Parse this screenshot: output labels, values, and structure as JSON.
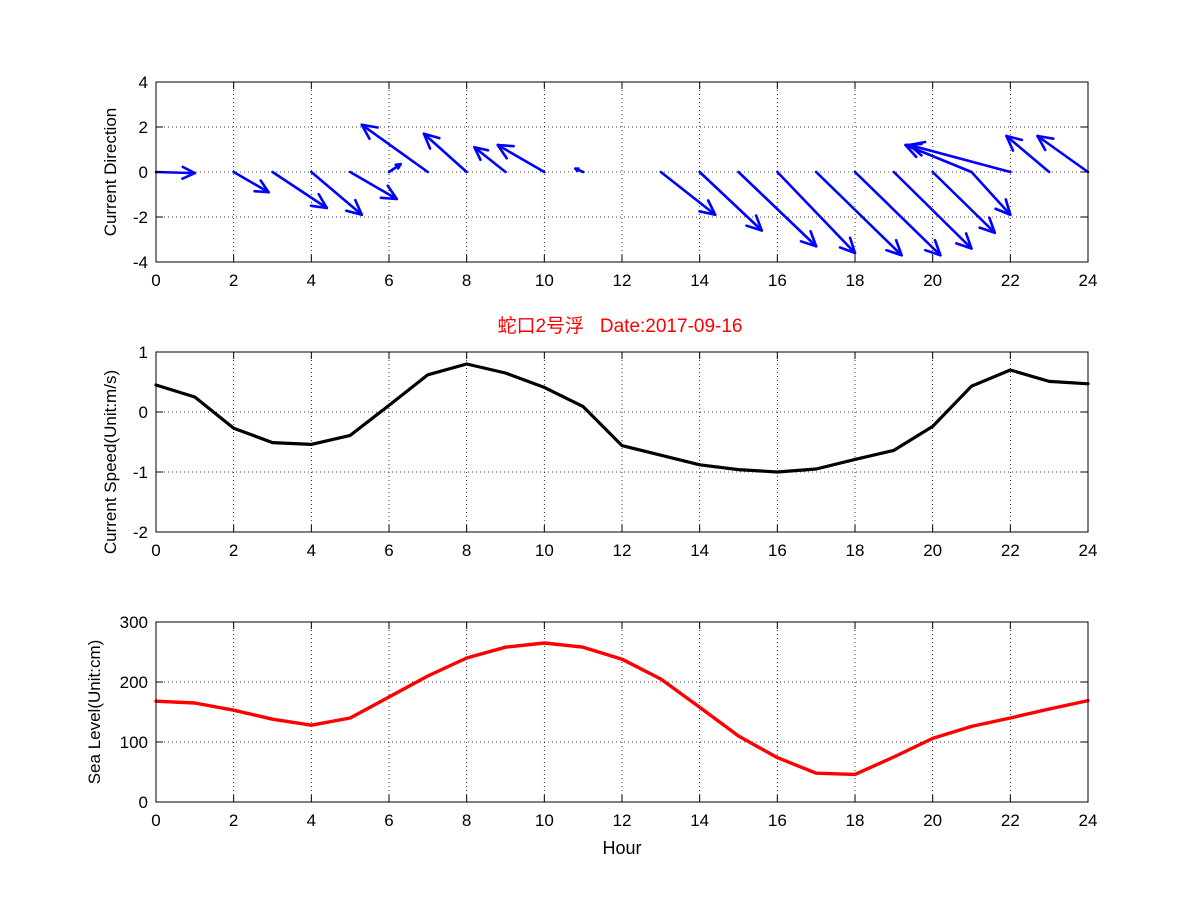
{
  "figure_title": "蛇口2号浮   Date:2017-09-16",
  "colors": {
    "arrows": "#0000ff",
    "speed": "#000000",
    "level": "#ff0000",
    "title": "#ff0000"
  },
  "chart_data": [
    {
      "type": "quiver",
      "title": "",
      "xlabel": "",
      "ylabel": "Current Direction",
      "xlim": [
        0,
        24
      ],
      "ylim": [
        -4,
        4
      ],
      "xticks": [
        "0",
        "2",
        "4",
        "6",
        "8",
        "10",
        "12",
        "14",
        "16",
        "18",
        "20",
        "22",
        "24"
      ],
      "yticks": [
        "4",
        "2",
        "0",
        "-2",
        "-4"
      ],
      "grid": true,
      "vectors": [
        {
          "x": 0,
          "u": 1.0,
          "v": -0.05
        },
        {
          "x": 2,
          "u": 0.9,
          "v": -0.9
        },
        {
          "x": 3,
          "u": 1.4,
          "v": -1.6
        },
        {
          "x": 4,
          "u": 1.3,
          "v": -1.9
        },
        {
          "x": 5,
          "u": 1.2,
          "v": -1.2
        },
        {
          "x": 6,
          "u": 0.3,
          "v": 0.35
        },
        {
          "x": 7,
          "u": -1.7,
          "v": 2.1
        },
        {
          "x": 8,
          "u": -1.1,
          "v": 1.7
        },
        {
          "x": 9,
          "u": -0.8,
          "v": 1.1
        },
        {
          "x": 10,
          "u": -1.2,
          "v": 1.2
        },
        {
          "x": 11,
          "u": -0.2,
          "v": 0.15
        },
        {
          "x": 13,
          "u": 1.4,
          "v": -1.9
        },
        {
          "x": 14,
          "u": 1.6,
          "v": -2.6
        },
        {
          "x": 15,
          "u": 2.0,
          "v": -3.3
        },
        {
          "x": 16,
          "u": 2.0,
          "v": -3.6
        },
        {
          "x": 17,
          "u": 2.2,
          "v": -3.7
        },
        {
          "x": 18,
          "u": 2.2,
          "v": -3.7
        },
        {
          "x": 19,
          "u": 2.0,
          "v": -3.4
        },
        {
          "x": 20,
          "u": 1.6,
          "v": -2.7
        },
        {
          "x": 21,
          "u": 1.0,
          "v": -1.9
        },
        {
          "x": 21,
          "u": -1.7,
          "v": 1.2
        },
        {
          "x": 22,
          "u": -2.6,
          "v": 1.2
        },
        {
          "x": 23,
          "u": -1.1,
          "v": 1.6
        },
        {
          "x": 24,
          "u": -1.3,
          "v": 1.6
        }
      ]
    },
    {
      "type": "line",
      "title": "",
      "xlabel": "",
      "ylabel": "Current Speed(Unit:m/s)",
      "xlim": [
        0,
        24
      ],
      "ylim": [
        -2,
        1
      ],
      "xticks": [
        "0",
        "2",
        "4",
        "6",
        "8",
        "10",
        "12",
        "14",
        "16",
        "18",
        "20",
        "22",
        "24"
      ],
      "yticks": [
        "1",
        "0",
        "-1",
        "-2"
      ],
      "grid": true,
      "series": [
        {
          "x": [
            0,
            1,
            2,
            3,
            4,
            5,
            6,
            7,
            8,
            9,
            10,
            11,
            12,
            13,
            14,
            15,
            16,
            17,
            18,
            19,
            20,
            21,
            22,
            23,
            24
          ],
          "values": [
            0.45,
            0.25,
            -0.27,
            -0.51,
            -0.54,
            -0.39,
            0.11,
            0.62,
            0.8,
            0.65,
            0.41,
            0.09,
            -0.56,
            -0.72,
            -0.88,
            -0.96,
            -1.0,
            -0.95,
            -0.79,
            -0.64,
            -0.24,
            0.43,
            0.7,
            0.51,
            0.47
          ]
        }
      ]
    },
    {
      "type": "line",
      "title": "",
      "xlabel": "Hour",
      "ylabel": "Sea Level(Unit:cm)",
      "xlim": [
        0,
        24
      ],
      "ylim": [
        0,
        300
      ],
      "xticks": [
        "0",
        "2",
        "4",
        "6",
        "8",
        "10",
        "12",
        "14",
        "16",
        "18",
        "20",
        "22",
        "24"
      ],
      "yticks": [
        "300",
        "200",
        "100",
        "0"
      ],
      "grid": true,
      "series": [
        {
          "x": [
            0,
            1,
            2,
            3,
            4,
            5,
            6,
            7,
            8,
            9,
            10,
            11,
            12,
            13,
            14,
            15,
            16,
            17,
            18,
            19,
            20,
            21,
            22,
            23,
            24
          ],
          "values": [
            168,
            165,
            153,
            138,
            128,
            140,
            175,
            210,
            240,
            258,
            265,
            258,
            238,
            205,
            158,
            110,
            74,
            48,
            46,
            75,
            106,
            126,
            140,
            155,
            169
          ]
        }
      ]
    }
  ]
}
